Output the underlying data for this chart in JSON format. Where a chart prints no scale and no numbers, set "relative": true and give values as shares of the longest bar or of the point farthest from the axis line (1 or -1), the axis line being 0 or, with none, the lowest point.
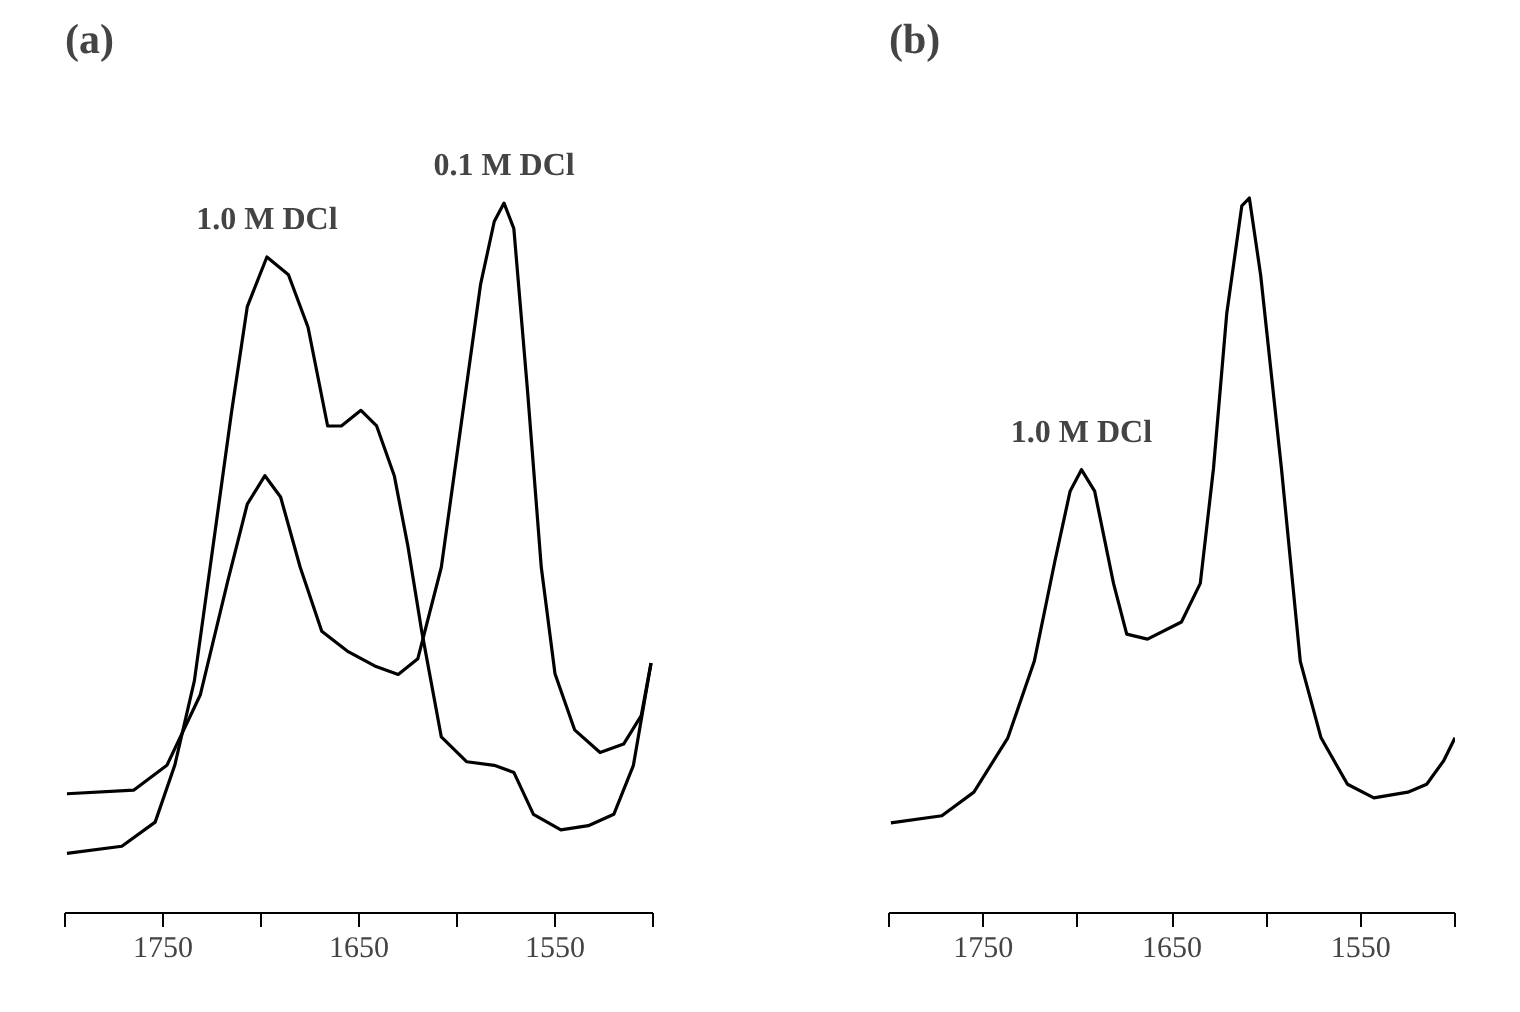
{
  "chart_data": [
    {
      "type": "line",
      "title": "(a)",
      "relative": true,
      "xlim": [
        1800,
        1500
      ],
      "xticks": [
        {
          "value": 1800,
          "label": null
        },
        1750,
        {
          "value": 1700,
          "label": null
        },
        1650,
        {
          "value": 1600,
          "label": null
        },
        1550,
        {
          "value": 1500,
          "label": null
        }
      ],
      "series": [
        {
          "color": "#000000",
          "x": [
            1799,
            1771,
            1754,
            1744,
            1734,
            1724,
            1715,
            1707,
            1697,
            1686,
            1676,
            1666,
            1659,
            1649,
            1641,
            1632,
            1625,
            1618,
            1608,
            1595,
            1581,
            1571,
            1561,
            1547,
            1533,
            1520,
            1510,
            1501
          ],
          "values": [
            0.084,
            0.094,
            0.128,
            0.208,
            0.327,
            0.526,
            0.706,
            0.854,
            0.924,
            0.899,
            0.825,
            0.686,
            0.686,
            0.708,
            0.686,
            0.616,
            0.516,
            0.397,
            0.248,
            0.213,
            0.208,
            0.198,
            0.139,
            0.117,
            0.123,
            0.139,
            0.208,
            0.352
          ]
        },
        {
          "color": "#000000",
          "x": [
            1799,
            1765,
            1748,
            1731,
            1717,
            1707,
            1698,
            1690,
            1680,
            1669,
            1656,
            1642,
            1630,
            1620,
            1608,
            1598,
            1588,
            1581,
            1576,
            1571,
            1564,
            1557,
            1550,
            1540,
            1527,
            1515,
            1506,
            1501
          ],
          "values": [
            0.168,
            0.173,
            0.208,
            0.307,
            0.467,
            0.576,
            0.616,
            0.586,
            0.487,
            0.397,
            0.369,
            0.348,
            0.336,
            0.358,
            0.487,
            0.686,
            0.885,
            0.974,
            1,
            0.964,
            0.735,
            0.487,
            0.337,
            0.258,
            0.226,
            0.238,
            0.278,
            0.352
          ]
        }
      ],
      "annotations": [
        {
          "text": "1.0 M DCl",
          "x": 1697,
          "y": 0.924
        },
        {
          "text": "0.1 M DCl",
          "x": 1576,
          "y": 1
        }
      ]
    },
    {
      "type": "line",
      "title": "(b)",
      "relative": true,
      "xlim": [
        1800,
        1500
      ],
      "xticks": [
        {
          "value": 1800,
          "label": null
        },
        1750,
        {
          "value": 1700,
          "label": null
        },
        1650,
        {
          "value": 1600,
          "label": null
        },
        1550,
        {
          "value": 1500,
          "label": null
        }
      ],
      "series": [
        {
          "color": "#000000",
          "x": [
            1799,
            1772,
            1755,
            1737,
            1723,
            1712,
            1704,
            1698,
            1691,
            1681,
            1674,
            1663,
            1645,
            1635,
            1628,
            1621,
            1613,
            1609,
            1603,
            1592,
            1582,
            1571,
            1557,
            1543,
            1525,
            1515,
            1506,
            1500
          ],
          "values": [
            0.126,
            0.136,
            0.169,
            0.245,
            0.352,
            0.493,
            0.59,
            0.62,
            0.59,
            0.461,
            0.39,
            0.383,
            0.407,
            0.461,
            0.622,
            0.838,
            0.989,
            1,
            0.892,
            0.622,
            0.352,
            0.245,
            0.18,
            0.161,
            0.169,
            0.18,
            0.213,
            0.245
          ]
        }
      ],
      "annotations": [
        {
          "text": "1.0 M DCl",
          "x": 1698,
          "y": 0.62
        }
      ]
    }
  ]
}
